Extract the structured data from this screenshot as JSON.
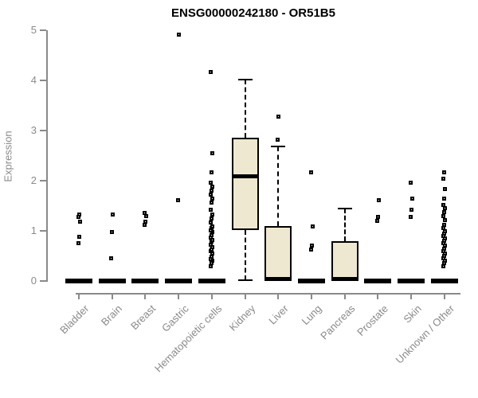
{
  "chart_data": {
    "type": "boxplot",
    "title": "ENSG00000242180 - OR51B5",
    "xlabel": "",
    "ylabel": "Expression",
    "ylim": [
      0,
      5
    ],
    "y_ticks": [
      0,
      1,
      2,
      3,
      4,
      5
    ],
    "grid": false,
    "legend": "none",
    "categories": [
      "Bladder",
      "Brain",
      "Breast",
      "Gastric",
      "Hematopoietic cells",
      "Kidney",
      "Liver",
      "Lung",
      "Pancreas",
      "Prostate",
      "Skin",
      "Unknown / Other"
    ],
    "series": [
      {
        "name": "Bladder",
        "box": {
          "q1": 0,
          "median": 0.01,
          "q3": 0.03,
          "whisker_low": 0,
          "whisker_high": 0.03
        },
        "outliers": [
          0.76,
          0.88,
          1.18,
          1.28,
          1.33
        ]
      },
      {
        "name": "Brain",
        "box": {
          "q1": 0,
          "median": 0.01,
          "q3": 0.03,
          "whisker_low": 0,
          "whisker_high": 0.03
        },
        "outliers": [
          0.45,
          0.97,
          1.32
        ]
      },
      {
        "name": "Breast",
        "box": {
          "q1": 0,
          "median": 0.01,
          "q3": 0.03,
          "whisker_low": 0,
          "whisker_high": 0.03
        },
        "outliers": [
          1.12,
          1.18,
          1.3,
          1.35
        ]
      },
      {
        "name": "Gastric",
        "box": {
          "q1": 0,
          "median": 0.01,
          "q3": 0.03,
          "whisker_low": 0,
          "whisker_high": 0.03
        },
        "outliers": [
          1.61,
          4.92
        ]
      },
      {
        "name": "Hematopoietic cells",
        "box": {
          "q1": 0,
          "median": 0.01,
          "q3": 0.03,
          "whisker_low": 0,
          "whisker_high": 0.03
        },
        "outliers": [
          0.3,
          0.35,
          0.4,
          0.44,
          0.49,
          0.54,
          0.59,
          0.63,
          0.68,
          0.73,
          0.78,
          0.82,
          0.87,
          0.92,
          0.97,
          1.01,
          1.06,
          1.09,
          1.17,
          1.25,
          1.33,
          1.42,
          1.57,
          1.65,
          1.72,
          1.8,
          1.88,
          1.96,
          2.17,
          2.55,
          4.16
        ]
      },
      {
        "name": "Kidney",
        "box": {
          "q1": 1.01,
          "median": 2.08,
          "q3": 2.85,
          "whisker_low": 0.02,
          "whisker_high": 4.02
        },
        "outliers": []
      },
      {
        "name": "Liver",
        "box": {
          "q1": 0.02,
          "median": 0.04,
          "q3": 1.1,
          "whisker_low": 0.01,
          "whisker_high": 2.68
        },
        "outliers": [
          2.82,
          3.27
        ]
      },
      {
        "name": "Lung",
        "box": {
          "q1": 0,
          "median": 0.01,
          "q3": 0.03,
          "whisker_low": 0,
          "whisker_high": 0.03
        },
        "outliers": [
          0.62,
          0.7,
          1.09,
          2.17
        ]
      },
      {
        "name": "Pancreas",
        "box": {
          "q1": 0.02,
          "median": 0.04,
          "q3": 0.79,
          "whisker_low": 0.01,
          "whisker_high": 1.45
        },
        "outliers": []
      },
      {
        "name": "Prostate",
        "box": {
          "q1": 0,
          "median": 0.01,
          "q3": 0.03,
          "whisker_low": 0,
          "whisker_high": 0.03
        },
        "outliers": [
          1.2,
          1.27,
          1.61
        ]
      },
      {
        "name": "Skin",
        "box": {
          "q1": 0,
          "median": 0.01,
          "q3": 0.03,
          "whisker_low": 0,
          "whisker_high": 0.03
        },
        "outliers": [
          1.27,
          1.42,
          1.65,
          1.96
        ]
      },
      {
        "name": "Unknown / Other",
        "box": {
          "q1": 0,
          "median": 0.01,
          "q3": 0.03,
          "whisker_low": 0,
          "whisker_high": 0.03
        },
        "outliers": [
          0.3,
          0.35,
          0.4,
          0.45,
          0.5,
          0.55,
          0.6,
          0.65,
          0.7,
          0.75,
          0.8,
          0.85,
          0.9,
          0.95,
          1.0,
          1.05,
          1.12,
          1.22,
          1.3,
          1.38,
          1.45,
          1.52,
          1.65,
          1.84,
          2.04,
          2.17
        ]
      }
    ],
    "colors": {
      "box_fill": "#EDE8CF",
      "box_border": "#000000",
      "median": "#000000",
      "whisker": "#000000",
      "outlier_border": "#000000",
      "axis": "#8A8A8A",
      "tick_label": "#8A8A8A",
      "title": "#000000",
      "background": "#FFFFFF"
    }
  }
}
